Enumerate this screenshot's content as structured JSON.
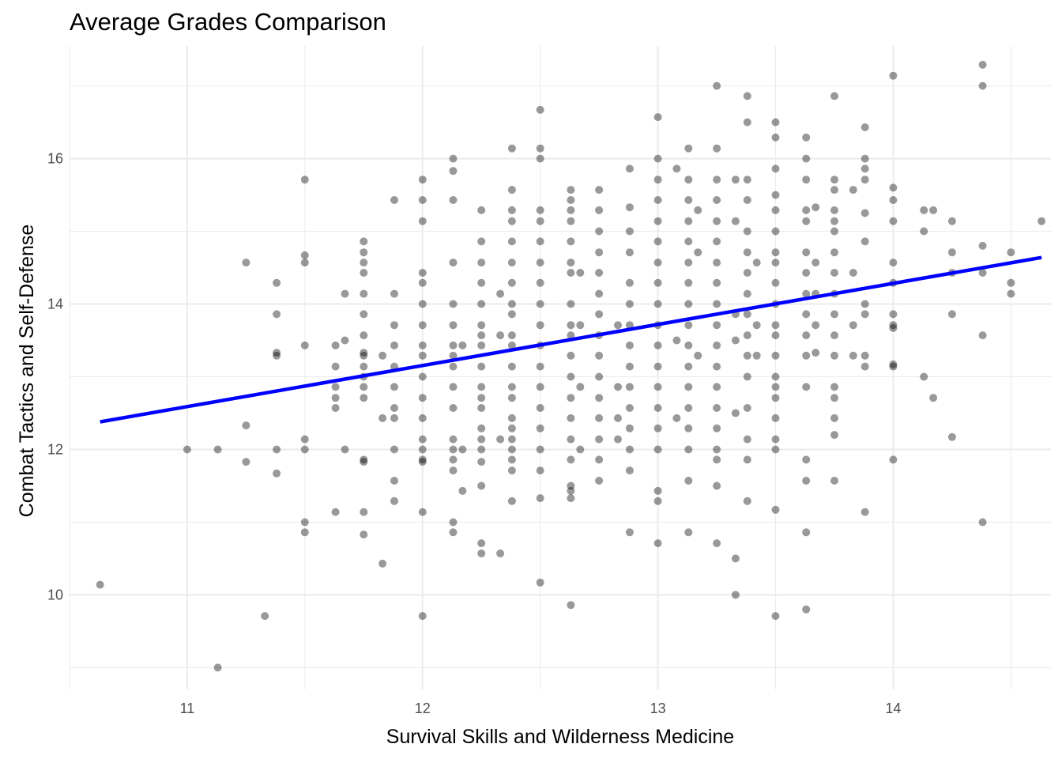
{
  "chart_data": {
    "type": "scatter",
    "title": "Average Grades Comparison",
    "xlabel": "Survival Skills and Wilderness Medicine",
    "ylabel": "Combat Tactics and Self-Defense",
    "xlim": [
      10.5,
      14.67
    ],
    "ylim": [
      8.7,
      17.55
    ],
    "x_ticks": [
      11,
      12,
      13,
      14
    ],
    "y_ticks": [
      10,
      12,
      14,
      16
    ],
    "x_tick_labels": [
      "11",
      "12",
      "13",
      "14"
    ],
    "y_tick_labels": [
      "10",
      "12",
      "14",
      "16"
    ],
    "grid": true,
    "point_color": "#000000",
    "point_opacity": 0.4,
    "trend_color": "#0000ff",
    "trend_line": {
      "x": [
        10.63,
        14.63
      ],
      "y": [
        12.38,
        14.64
      ]
    },
    "points": [
      [
        10.63,
        10.14
      ],
      [
        11.0,
        12.0
      ],
      [
        11.13,
        12.0
      ],
      [
        11.13,
        9.0
      ],
      [
        11.25,
        14.57
      ],
      [
        11.25,
        12.33
      ],
      [
        11.25,
        11.83
      ],
      [
        11.33,
        9.71
      ],
      [
        11.38,
        14.29
      ],
      [
        11.38,
        13.86
      ],
      [
        11.38,
        13.33
      ],
      [
        11.38,
        13.29
      ],
      [
        11.38,
        12.0
      ],
      [
        11.38,
        11.67
      ],
      [
        11.5,
        15.71
      ],
      [
        11.5,
        14.67
      ],
      [
        11.5,
        14.57
      ],
      [
        11.5,
        13.43
      ],
      [
        11.5,
        12.14
      ],
      [
        11.5,
        12.0
      ],
      [
        11.5,
        11.0
      ],
      [
        11.5,
        10.86
      ],
      [
        11.63,
        13.43
      ],
      [
        11.63,
        13.14
      ],
      [
        11.63,
        12.86
      ],
      [
        11.63,
        12.71
      ],
      [
        11.63,
        12.57
      ],
      [
        11.63,
        11.14
      ],
      [
        11.67,
        14.14
      ],
      [
        11.67,
        13.5
      ],
      [
        11.67,
        12.0
      ],
      [
        11.75,
        14.86
      ],
      [
        11.75,
        14.71
      ],
      [
        11.75,
        14.57
      ],
      [
        11.75,
        14.43
      ],
      [
        11.75,
        14.14
      ],
      [
        11.75,
        13.86
      ],
      [
        11.75,
        13.57
      ],
      [
        11.75,
        13.33
      ],
      [
        11.75,
        13.29
      ],
      [
        11.75,
        13.14
      ],
      [
        11.75,
        13.0
      ],
      [
        11.75,
        12.86
      ],
      [
        11.75,
        12.71
      ],
      [
        11.75,
        11.86
      ],
      [
        11.75,
        11.83
      ],
      [
        11.75,
        11.14
      ],
      [
        11.75,
        10.83
      ],
      [
        11.83,
        13.29
      ],
      [
        11.83,
        12.43
      ],
      [
        11.83,
        10.43
      ],
      [
        11.88,
        15.43
      ],
      [
        11.88,
        14.14
      ],
      [
        11.88,
        13.71
      ],
      [
        11.88,
        13.43
      ],
      [
        11.88,
        13.14
      ],
      [
        11.88,
        12.86
      ],
      [
        11.88,
        12.57
      ],
      [
        11.88,
        12.43
      ],
      [
        11.88,
        12.0
      ],
      [
        11.88,
        11.57
      ],
      [
        11.88,
        11.29
      ],
      [
        12.0,
        15.71
      ],
      [
        12.0,
        15.43
      ],
      [
        12.0,
        15.14
      ],
      [
        12.0,
        14.43
      ],
      [
        12.0,
        14.29
      ],
      [
        12.0,
        14.0
      ],
      [
        12.0,
        13.71
      ],
      [
        12.0,
        13.43
      ],
      [
        12.0,
        13.29
      ],
      [
        12.0,
        13.0
      ],
      [
        12.0,
        12.71
      ],
      [
        12.0,
        12.43
      ],
      [
        12.0,
        12.14
      ],
      [
        12.0,
        12.0
      ],
      [
        12.0,
        11.86
      ],
      [
        12.0,
        11.83
      ],
      [
        12.0,
        11.14
      ],
      [
        12.0,
        9.71
      ],
      [
        12.13,
        16.0
      ],
      [
        12.13,
        15.83
      ],
      [
        12.13,
        15.43
      ],
      [
        12.13,
        14.57
      ],
      [
        12.13,
        14.0
      ],
      [
        12.13,
        13.71
      ],
      [
        12.13,
        13.43
      ],
      [
        12.13,
        13.29
      ],
      [
        12.13,
        13.14
      ],
      [
        12.13,
        12.86
      ],
      [
        12.13,
        12.57
      ],
      [
        12.13,
        12.14
      ],
      [
        12.13,
        12.0
      ],
      [
        12.13,
        11.86
      ],
      [
        12.13,
        11.71
      ],
      [
        12.13,
        11.0
      ],
      [
        12.13,
        10.86
      ],
      [
        12.17,
        13.43
      ],
      [
        12.17,
        12.0
      ],
      [
        12.17,
        11.43
      ],
      [
        12.25,
        15.29
      ],
      [
        12.25,
        14.86
      ],
      [
        12.25,
        14.57
      ],
      [
        12.25,
        14.29
      ],
      [
        12.25,
        14.0
      ],
      [
        12.25,
        13.71
      ],
      [
        12.25,
        13.57
      ],
      [
        12.25,
        13.43
      ],
      [
        12.25,
        13.14
      ],
      [
        12.25,
        12.86
      ],
      [
        12.25,
        12.71
      ],
      [
        12.25,
        12.57
      ],
      [
        12.25,
        12.29
      ],
      [
        12.25,
        12.14
      ],
      [
        12.25,
        12.0
      ],
      [
        12.25,
        11.83
      ],
      [
        12.25,
        11.5
      ],
      [
        12.25,
        10.71
      ],
      [
        12.25,
        10.57
      ],
      [
        12.33,
        14.14
      ],
      [
        12.33,
        13.57
      ],
      [
        12.33,
        12.14
      ],
      [
        12.33,
        10.57
      ],
      [
        12.38,
        16.14
      ],
      [
        12.38,
        15.57
      ],
      [
        12.38,
        15.29
      ],
      [
        12.38,
        15.14
      ],
      [
        12.38,
        14.86
      ],
      [
        12.38,
        14.57
      ],
      [
        12.38,
        14.29
      ],
      [
        12.38,
        14.0
      ],
      [
        12.38,
        13.86
      ],
      [
        12.38,
        13.57
      ],
      [
        12.38,
        13.43
      ],
      [
        12.38,
        13.14
      ],
      [
        12.38,
        12.86
      ],
      [
        12.38,
        12.71
      ],
      [
        12.38,
        12.43
      ],
      [
        12.38,
        12.29
      ],
      [
        12.38,
        12.14
      ],
      [
        12.38,
        12.0
      ],
      [
        12.38,
        11.86
      ],
      [
        12.38,
        11.71
      ],
      [
        12.38,
        11.29
      ],
      [
        12.5,
        16.67
      ],
      [
        12.5,
        16.14
      ],
      [
        12.5,
        16.0
      ],
      [
        12.5,
        15.29
      ],
      [
        12.5,
        15.14
      ],
      [
        12.5,
        14.86
      ],
      [
        12.5,
        14.57
      ],
      [
        12.5,
        14.29
      ],
      [
        12.5,
        14.0
      ],
      [
        12.5,
        13.71
      ],
      [
        12.5,
        13.43
      ],
      [
        12.5,
        13.14
      ],
      [
        12.5,
        12.86
      ],
      [
        12.5,
        12.57
      ],
      [
        12.5,
        12.29
      ],
      [
        12.5,
        12.0
      ],
      [
        12.5,
        11.71
      ],
      [
        12.5,
        11.33
      ],
      [
        12.5,
        10.17
      ],
      [
        12.63,
        15.57
      ],
      [
        12.63,
        15.43
      ],
      [
        12.63,
        15.29
      ],
      [
        12.63,
        15.14
      ],
      [
        12.63,
        14.86
      ],
      [
        12.63,
        14.57
      ],
      [
        12.63,
        14.43
      ],
      [
        12.63,
        14.0
      ],
      [
        12.63,
        13.71
      ],
      [
        12.63,
        13.57
      ],
      [
        12.63,
        13.29
      ],
      [
        12.63,
        13.0
      ],
      [
        12.63,
        12.71
      ],
      [
        12.63,
        12.43
      ],
      [
        12.63,
        12.14
      ],
      [
        12.63,
        11.86
      ],
      [
        12.63,
        11.5
      ],
      [
        12.63,
        11.43
      ],
      [
        12.63,
        11.33
      ],
      [
        12.63,
        9.86
      ],
      [
        12.67,
        14.43
      ],
      [
        12.67,
        13.71
      ],
      [
        12.67,
        12.86
      ],
      [
        12.67,
        12.0
      ],
      [
        12.75,
        15.57
      ],
      [
        12.75,
        15.29
      ],
      [
        12.75,
        15.0
      ],
      [
        12.75,
        14.71
      ],
      [
        12.75,
        14.43
      ],
      [
        12.75,
        14.14
      ],
      [
        12.75,
        13.86
      ],
      [
        12.75,
        13.57
      ],
      [
        12.75,
        13.29
      ],
      [
        12.75,
        13.0
      ],
      [
        12.75,
        12.71
      ],
      [
        12.75,
        12.43
      ],
      [
        12.75,
        12.14
      ],
      [
        12.75,
        11.86
      ],
      [
        12.75,
        11.57
      ],
      [
        12.83,
        13.71
      ],
      [
        12.83,
        12.86
      ],
      [
        12.83,
        12.43
      ],
      [
        12.83,
        12.14
      ],
      [
        12.88,
        15.86
      ],
      [
        12.88,
        15.33
      ],
      [
        12.88,
        15.0
      ],
      [
        12.88,
        14.71
      ],
      [
        12.88,
        14.29
      ],
      [
        12.88,
        14.0
      ],
      [
        12.88,
        13.71
      ],
      [
        12.88,
        13.43
      ],
      [
        12.88,
        13.14
      ],
      [
        12.88,
        12.86
      ],
      [
        12.88,
        12.57
      ],
      [
        12.88,
        12.29
      ],
      [
        12.88,
        12.0
      ],
      [
        12.88,
        11.71
      ],
      [
        12.88,
        10.86
      ],
      [
        13.0,
        16.57
      ],
      [
        13.0,
        16.0
      ],
      [
        13.0,
        15.71
      ],
      [
        13.0,
        15.43
      ],
      [
        13.0,
        15.14
      ],
      [
        13.0,
        14.86
      ],
      [
        13.0,
        14.57
      ],
      [
        13.0,
        14.29
      ],
      [
        13.0,
        14.0
      ],
      [
        13.0,
        13.71
      ],
      [
        13.0,
        13.43
      ],
      [
        13.0,
        13.14
      ],
      [
        13.0,
        12.86
      ],
      [
        13.0,
        12.57
      ],
      [
        13.0,
        12.29
      ],
      [
        13.0,
        12.0
      ],
      [
        13.0,
        11.43
      ],
      [
        13.0,
        11.29
      ],
      [
        13.0,
        10.71
      ],
      [
        13.08,
        15.86
      ],
      [
        13.08,
        13.5
      ],
      [
        13.08,
        12.43
      ],
      [
        13.13,
        16.14
      ],
      [
        13.13,
        15.71
      ],
      [
        13.13,
        15.43
      ],
      [
        13.13,
        15.14
      ],
      [
        13.13,
        14.86
      ],
      [
        13.13,
        14.57
      ],
      [
        13.13,
        14.29
      ],
      [
        13.13,
        14.0
      ],
      [
        13.13,
        13.71
      ],
      [
        13.13,
        13.43
      ],
      [
        13.13,
        13.14
      ],
      [
        13.13,
        12.86
      ],
      [
        13.13,
        12.57
      ],
      [
        13.13,
        12.29
      ],
      [
        13.13,
        12.0
      ],
      [
        13.13,
        11.57
      ],
      [
        13.13,
        10.86
      ],
      [
        13.17,
        15.29
      ],
      [
        13.17,
        14.71
      ],
      [
        13.17,
        13.29
      ],
      [
        13.25,
        17.0
      ],
      [
        13.25,
        16.14
      ],
      [
        13.25,
        15.71
      ],
      [
        13.25,
        15.43
      ],
      [
        13.25,
        15.14
      ],
      [
        13.25,
        14.86
      ],
      [
        13.25,
        14.57
      ],
      [
        13.25,
        14.29
      ],
      [
        13.25,
        14.0
      ],
      [
        13.25,
        13.71
      ],
      [
        13.25,
        13.43
      ],
      [
        13.25,
        13.14
      ],
      [
        13.25,
        12.86
      ],
      [
        13.25,
        12.57
      ],
      [
        13.25,
        12.29
      ],
      [
        13.25,
        12.0
      ],
      [
        13.25,
        11.86
      ],
      [
        13.25,
        11.5
      ],
      [
        13.25,
        10.71
      ],
      [
        13.33,
        15.71
      ],
      [
        13.33,
        15.14
      ],
      [
        13.33,
        13.86
      ],
      [
        13.33,
        13.5
      ],
      [
        13.33,
        12.5
      ],
      [
        13.33,
        10.5
      ],
      [
        13.33,
        10.0
      ],
      [
        13.38,
        16.86
      ],
      [
        13.38,
        16.5
      ],
      [
        13.38,
        15.71
      ],
      [
        13.38,
        15.43
      ],
      [
        13.38,
        15.0
      ],
      [
        13.38,
        14.71
      ],
      [
        13.38,
        14.43
      ],
      [
        13.38,
        14.14
      ],
      [
        13.38,
        13.86
      ],
      [
        13.38,
        13.57
      ],
      [
        13.38,
        13.29
      ],
      [
        13.38,
        13.0
      ],
      [
        13.38,
        12.57
      ],
      [
        13.38,
        12.14
      ],
      [
        13.38,
        11.86
      ],
      [
        13.38,
        11.29
      ],
      [
        13.42,
        14.57
      ],
      [
        13.42,
        13.71
      ],
      [
        13.42,
        13.29
      ],
      [
        13.5,
        16.5
      ],
      [
        13.5,
        16.29
      ],
      [
        13.5,
        15.86
      ],
      [
        13.5,
        15.5
      ],
      [
        13.5,
        15.29
      ],
      [
        13.5,
        15.0
      ],
      [
        13.5,
        14.71
      ],
      [
        13.5,
        14.57
      ],
      [
        13.5,
        14.29
      ],
      [
        13.5,
        14.0
      ],
      [
        13.5,
        13.71
      ],
      [
        13.5,
        13.57
      ],
      [
        13.5,
        13.29
      ],
      [
        13.5,
        13.0
      ],
      [
        13.5,
        12.86
      ],
      [
        13.5,
        12.71
      ],
      [
        13.5,
        12.43
      ],
      [
        13.5,
        12.14
      ],
      [
        13.5,
        12.0
      ],
      [
        13.5,
        11.17
      ],
      [
        13.5,
        9.71
      ],
      [
        13.63,
        16.29
      ],
      [
        13.63,
        16.0
      ],
      [
        13.63,
        15.71
      ],
      [
        13.63,
        15.29
      ],
      [
        13.63,
        15.14
      ],
      [
        13.63,
        14.71
      ],
      [
        13.63,
        14.43
      ],
      [
        13.63,
        14.14
      ],
      [
        13.63,
        13.86
      ],
      [
        13.63,
        13.57
      ],
      [
        13.63,
        13.29
      ],
      [
        13.63,
        12.86
      ],
      [
        13.63,
        11.86
      ],
      [
        13.63,
        11.57
      ],
      [
        13.63,
        10.86
      ],
      [
        13.63,
        9.8
      ],
      [
        13.67,
        15.33
      ],
      [
        13.67,
        14.57
      ],
      [
        13.67,
        14.14
      ],
      [
        13.67,
        13.71
      ],
      [
        13.67,
        13.33
      ],
      [
        13.75,
        16.86
      ],
      [
        13.75,
        15.71
      ],
      [
        13.75,
        15.57
      ],
      [
        13.75,
        15.29
      ],
      [
        13.75,
        15.14
      ],
      [
        13.75,
        15.0
      ],
      [
        13.75,
        14.71
      ],
      [
        13.75,
        14.43
      ],
      [
        13.75,
        14.14
      ],
      [
        13.75,
        13.86
      ],
      [
        13.75,
        13.57
      ],
      [
        13.75,
        13.29
      ],
      [
        13.75,
        12.86
      ],
      [
        13.75,
        12.71
      ],
      [
        13.75,
        12.43
      ],
      [
        13.75,
        12.2
      ],
      [
        13.75,
        11.57
      ],
      [
        13.83,
        15.57
      ],
      [
        13.83,
        14.43
      ],
      [
        13.83,
        13.71
      ],
      [
        13.83,
        13.29
      ],
      [
        13.88,
        16.43
      ],
      [
        13.88,
        16.0
      ],
      [
        13.88,
        15.86
      ],
      [
        13.88,
        15.71
      ],
      [
        13.88,
        15.25
      ],
      [
        13.88,
        14.86
      ],
      [
        13.88,
        14.0
      ],
      [
        13.88,
        13.86
      ],
      [
        13.88,
        13.29
      ],
      [
        13.88,
        13.14
      ],
      [
        13.88,
        11.14
      ],
      [
        14.0,
        17.14
      ],
      [
        14.0,
        15.6
      ],
      [
        14.0,
        15.43
      ],
      [
        14.0,
        15.14
      ],
      [
        14.0,
        14.57
      ],
      [
        14.0,
        14.29
      ],
      [
        14.0,
        13.86
      ],
      [
        14.0,
        13.71
      ],
      [
        14.0,
        13.67
      ],
      [
        14.0,
        13.17
      ],
      [
        14.0,
        13.14
      ],
      [
        14.0,
        11.86
      ],
      [
        14.13,
        15.29
      ],
      [
        14.13,
        15.0
      ],
      [
        14.13,
        13.0
      ],
      [
        14.17,
        15.29
      ],
      [
        14.17,
        12.71
      ],
      [
        14.25,
        15.14
      ],
      [
        14.25,
        14.71
      ],
      [
        14.25,
        14.43
      ],
      [
        14.25,
        13.86
      ],
      [
        14.25,
        12.17
      ],
      [
        14.38,
        17.29
      ],
      [
        14.38,
        17.0
      ],
      [
        14.38,
        14.8
      ],
      [
        14.38,
        14.43
      ],
      [
        14.38,
        13.57
      ],
      [
        14.38,
        11.0
      ],
      [
        14.5,
        14.71
      ],
      [
        14.5,
        14.29
      ],
      [
        14.5,
        14.14
      ],
      [
        14.63,
        15.14
      ]
    ]
  }
}
